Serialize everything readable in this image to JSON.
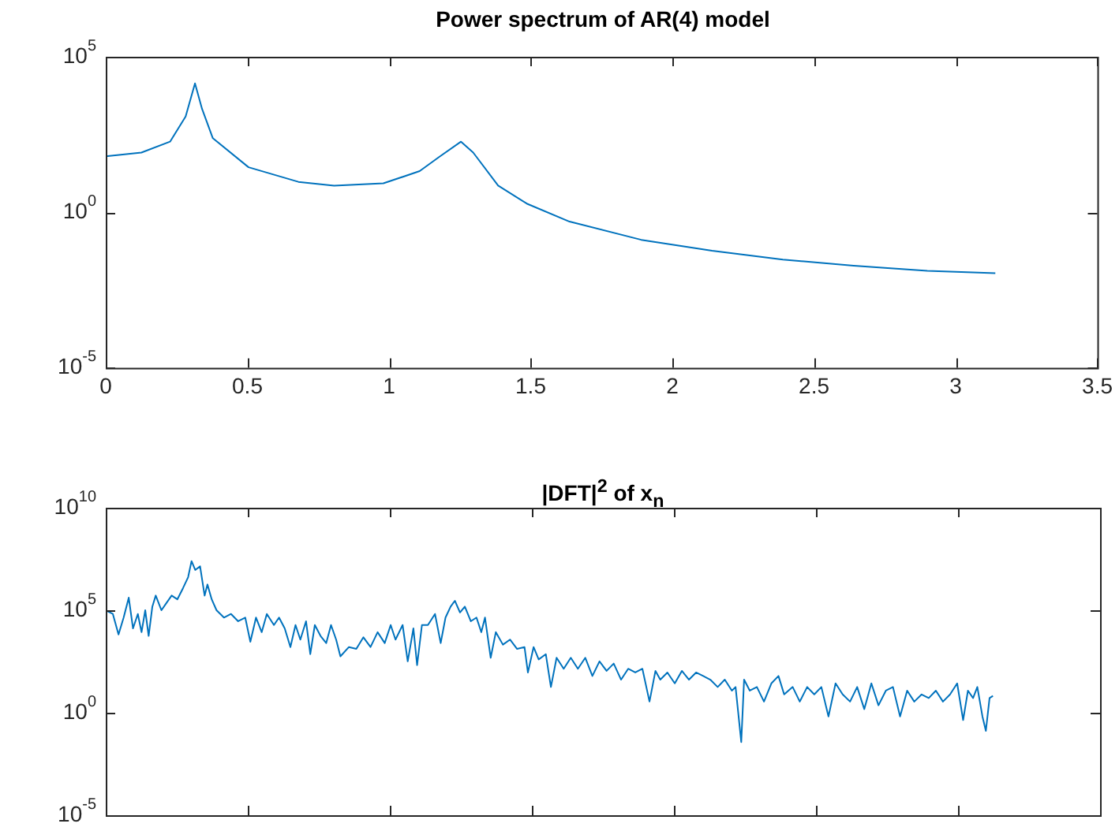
{
  "chart_data": [
    {
      "type": "line",
      "title": "Power spectrum of AR(4) model",
      "color": "#0072bd",
      "log": "y",
      "xlim": [
        0,
        3.5
      ],
      "xticks": [
        0,
        0.5,
        1,
        1.5,
        2,
        2.5,
        3,
        3.5
      ],
      "ylim": [
        1e-05,
        100000.0
      ],
      "yticks": [
        {
          "value": 1e-05,
          "label": "10$^{-5}$"
        },
        {
          "value": 1,
          "label": "10$^{0}$"
        },
        {
          "value": 100000.0,
          "label": "10$^{5}$"
        }
      ],
      "x": [
        0,
        0.126,
        0.227,
        0.282,
        0.315,
        0.34,
        0.378,
        0.504,
        0.68,
        0.806,
        0.98,
        1.108,
        1.18,
        1.254,
        1.297,
        1.385,
        1.486,
        1.637,
        1.89,
        2.14,
        2.39,
        2.64,
        2.9,
        3.14
      ],
      "values": [
        63,
        83,
        186,
        1200,
        14000,
        2100,
        240,
        28,
        9.5,
        7.2,
        8.5,
        21,
        63,
        186,
        83,
        7.2,
        1.9,
        0.5,
        0.13,
        0.058,
        0.03,
        0.019,
        0.013,
        0.011
      ]
    },
    {
      "type": "line",
      "title": "|DFT|$^{2}$ of x$_{n}$",
      "color": "#0072bd",
      "log": "y",
      "tick_labels": "y",
      "xlim": [
        0,
        3.5
      ],
      "xticks": [
        0,
        0.5,
        1,
        1.5,
        2,
        2.5,
        3,
        3.5
      ],
      "ylim": [
        1e-05,
        10000000000.0
      ],
      "yticks": [
        {
          "value": 1e-05,
          "label": "10$^{-5}$"
        },
        {
          "value": 1,
          "label": "10$^{0}$"
        },
        {
          "value": 100000.0,
          "label": "10$^{5}$"
        },
        {
          "value": 10000000000.0,
          "label": "10$^{10}$"
        }
      ],
      "x": [
        0,
        0.025,
        0.045,
        0.063,
        0.081,
        0.096,
        0.113,
        0.126,
        0.139,
        0.151,
        0.164,
        0.176,
        0.196,
        0.214,
        0.232,
        0.252,
        0.272,
        0.29,
        0.302,
        0.315,
        0.332,
        0.348,
        0.358,
        0.373,
        0.39,
        0.416,
        0.441,
        0.466,
        0.491,
        0.509,
        0.529,
        0.549,
        0.567,
        0.592,
        0.61,
        0.63,
        0.65,
        0.668,
        0.685,
        0.705,
        0.72,
        0.736,
        0.756,
        0.776,
        0.793,
        0.811,
        0.826,
        0.856,
        0.882,
        0.907,
        0.932,
        0.957,
        0.982,
        1.003,
        1.02,
        1.045,
        1.063,
        1.083,
        1.096,
        1.113,
        1.134,
        1.159,
        1.179,
        1.196,
        1.214,
        1.229,
        1.247,
        1.264,
        1.285,
        1.305,
        1.322,
        1.335,
        1.355,
        1.373,
        1.398,
        1.423,
        1.448,
        1.474,
        1.486,
        1.506,
        1.524,
        1.549,
        1.567,
        1.587,
        1.612,
        1.637,
        1.662,
        1.688,
        1.713,
        1.738,
        1.763,
        1.788,
        1.814,
        1.839,
        1.864,
        1.889,
        1.914,
        1.935,
        1.952,
        1.977,
        2.003,
        2.028,
        2.053,
        2.078,
        2.103,
        2.128,
        2.154,
        2.179,
        2.204,
        2.217,
        2.237,
        2.247,
        2.267,
        2.292,
        2.317,
        2.343,
        2.368,
        2.388,
        2.418,
        2.443,
        2.469,
        2.494,
        2.519,
        2.544,
        2.569,
        2.594,
        2.62,
        2.645,
        2.67,
        2.695,
        2.72,
        2.746,
        2.771,
        2.796,
        2.821,
        2.846,
        2.872,
        2.897,
        2.922,
        2.947,
        2.972,
        2.997,
        3.018,
        3.035,
        3.053,
        3.068,
        3.086,
        3.098,
        3.111,
        3.123
      ],
      "values": [
        100000.0,
        66000.0,
        6600.0,
        44000.0,
        410000.0,
        13000.0,
        66000.0,
        8500.0,
        100000.0,
        5600.0,
        150000.0,
        520000.0,
        100000.0,
        230000.0,
        520000.0,
        340000.0,
        1200000.0,
        4100000.0,
        25000000.0,
        9200000.0,
        14000000.0,
        520000.0,
        1800000.0,
        340000.0,
        100000.0,
        44000.0,
        66000.0,
        29000.0,
        44000.0,
        2900.0,
        44000.0,
        8500.0,
        66000.0,
        19000.0,
        44000.0,
        13000.0,
        1600.0,
        19000.0,
        3700.0,
        29000.0,
        720,
        19000.0,
        5600.0,
        2500.0,
        19000.0,
        3700.0,
        560,
        1600.0,
        1300.0,
        4800.0,
        1600.0,
        8500.0,
        2500.0,
        19000.0,
        3700.0,
        19000.0,
        320,
        13000.0,
        210,
        19000.0,
        19000.0,
        66000.0,
        2500.0,
        44000.0,
        150000.0,
        290000.0,
        78000.0,
        150000.0,
        29000.0,
        44000.0,
        8500.0,
        44000.0,
        480,
        8500.0,
        2100.0,
        3700.0,
        1300.0,
        1600.0,
        92,
        1600.0,
        400,
        720,
        18,
        480,
        140,
        480,
        140,
        480,
        62,
        320,
        110,
        250,
        41,
        140,
        92,
        140,
        3.5,
        110,
        41,
        92,
        27,
        110,
        41,
        92,
        62,
        41,
        18,
        41,
        12,
        18,
        0.037,
        41,
        12,
        18,
        3.5,
        27,
        62,
        7.8,
        18,
        3.5,
        18,
        7.8,
        18,
        0.66,
        27,
        7.8,
        3.5,
        18,
        1.5,
        27,
        2.3,
        12,
        18,
        0.66,
        12,
        3.5,
        7.8,
        5.2,
        12,
        3.5,
        7.8,
        27,
        0.44,
        12,
        5.2,
        18,
        0.66,
        0.13,
        5.2,
        6.6
      ]
    }
  ]
}
